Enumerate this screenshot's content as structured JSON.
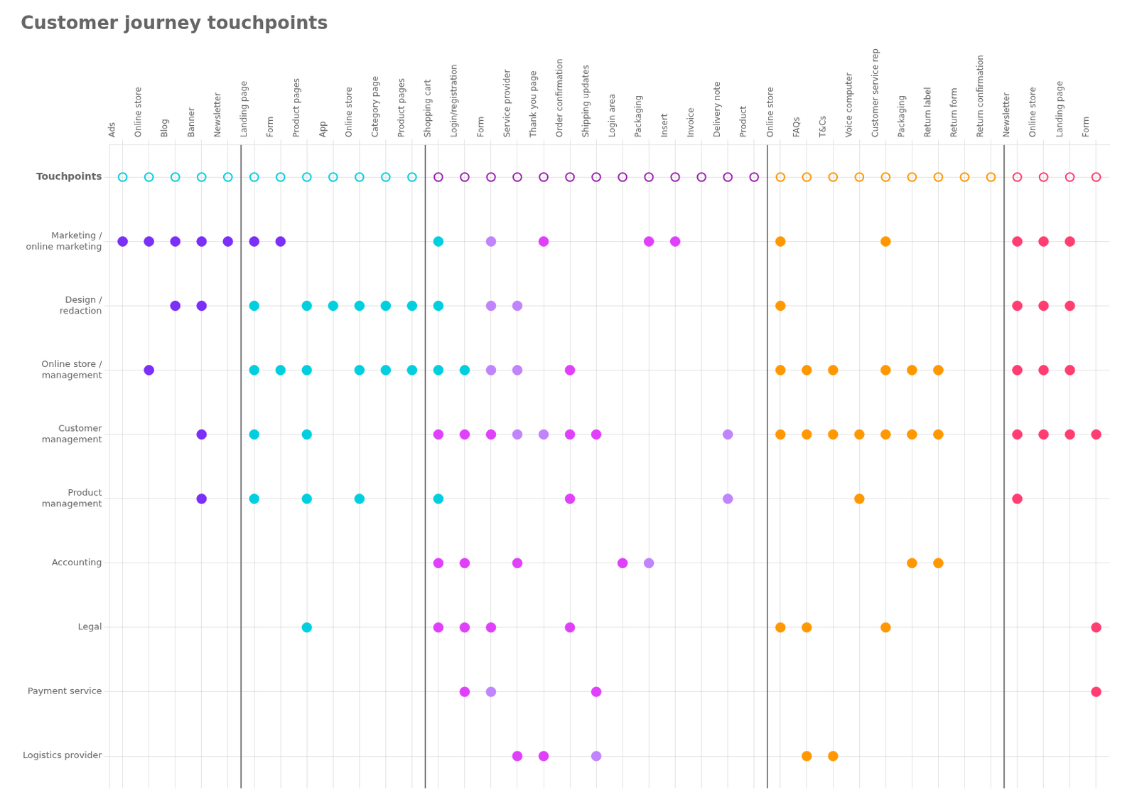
{
  "chart_data": {
    "type": "scatter",
    "title": "Customer journey touchpoints",
    "grid": true,
    "categories": [
      "Ads",
      "Online store",
      "Blog",
      "Banner",
      "Newsletter",
      "Landing page",
      "Form",
      "Product pages",
      "App",
      "Online store",
      "Category page",
      "Product pages",
      "Shopping cart",
      "Login/registration",
      "Form",
      "Service provider",
      "Thank you page",
      "Order confirmation",
      "Shipping updates",
      "Login area",
      "Packaging",
      "Insert",
      "Invoice",
      "Delivery note",
      "Product",
      "Online store",
      "FAQs",
      "T&Cs",
      "Voice computer",
      "Customer service rep",
      "Packaging",
      "Return label",
      "Return form",
      "Return confirmation",
      "Newsletter",
      "Online store",
      "Landing page",
      "Form"
    ],
    "group_separators": [
      4.5,
      11.5,
      24.5,
      33.5
    ],
    "series": [
      {
        "name": "Touchpoints",
        "marker": "open_circle",
        "colors": [
          "#00cfdf",
          "#00cfdf",
          "#00cfdf",
          "#00cfdf",
          "#00cfdf",
          "#00cfdf",
          "#00cfdf",
          "#00cfdf",
          "#00cfdf",
          "#00cfdf",
          "#00cfdf",
          "#00cfdf",
          "#9c27b0",
          "#9c27b0",
          "#9c27b0",
          "#9c27b0",
          "#9c27b0",
          "#9c27b0",
          "#9c27b0",
          "#9c27b0",
          "#9c27b0",
          "#9c27b0",
          "#9c27b0",
          "#9c27b0",
          "#9c27b0",
          "#ff9800",
          "#ff9800",
          "#ff9800",
          "#ff9800",
          "#ff9800",
          "#ff9800",
          "#ff9800",
          "#ff9800",
          "#ff9800",
          "#ff3d71",
          "#ff3d71",
          "#ff3d71",
          "#ff3d71"
        ]
      },
      {
        "name": "Marketing /\nonline marketing",
        "marker": "circle",
        "colors": [
          "#7b2ff7",
          "#7b2ff7",
          "#7b2ff7",
          "#7b2ff7",
          "#7b2ff7",
          "#7b2ff7",
          "#7b2ff7",
          null,
          null,
          null,
          null,
          null,
          "#00cfdf",
          null,
          "#c084fc",
          null,
          "#e040fb",
          null,
          null,
          null,
          "#e040fb",
          "#e040fb",
          null,
          null,
          null,
          "#ff9800",
          null,
          null,
          null,
          "#ff9800",
          null,
          null,
          null,
          null,
          "#ff3d71",
          "#ff3d71",
          "#ff3d71",
          null
        ]
      },
      {
        "name": "Design /\nredaction",
        "marker": "circle",
        "colors": [
          null,
          null,
          "#7b2ff7",
          "#7b2ff7",
          null,
          "#00cfdf",
          null,
          "#00cfdf",
          "#00cfdf",
          "#00cfdf",
          "#00cfdf",
          "#00cfdf",
          "#00cfdf",
          null,
          "#c084fc",
          "#c084fc",
          null,
          null,
          null,
          null,
          null,
          null,
          null,
          null,
          null,
          "#ff9800",
          null,
          null,
          null,
          null,
          null,
          null,
          null,
          null,
          "#ff3d71",
          "#ff3d71",
          "#ff3d71",
          null
        ]
      },
      {
        "name": "Online store /\nmanagement",
        "marker": "circle",
        "colors": [
          null,
          "#7b2ff7",
          null,
          null,
          null,
          "#00cfdf",
          "#00cfdf",
          "#00cfdf",
          null,
          "#00cfdf",
          "#00cfdf",
          "#00cfdf",
          "#00cfdf",
          "#00cfdf",
          "#c084fc",
          "#c084fc",
          null,
          "#e040fb",
          null,
          null,
          null,
          null,
          null,
          null,
          null,
          "#ff9800",
          "#ff9800",
          "#ff9800",
          null,
          "#ff9800",
          "#ff9800",
          "#ff9800",
          null,
          null,
          "#ff3d71",
          "#ff3d71",
          "#ff3d71",
          null
        ]
      },
      {
        "name": "Customer\nmanagement",
        "marker": "circle",
        "colors": [
          null,
          null,
          null,
          "#7b2ff7",
          null,
          "#00cfdf",
          null,
          "#00cfdf",
          null,
          null,
          null,
          null,
          "#e040fb",
          "#e040fb",
          "#e040fb",
          "#c084fc",
          "#c084fc",
          "#e040fb",
          "#e040fb",
          null,
          null,
          null,
          null,
          "#c084fc",
          null,
          "#ff9800",
          "#ff9800",
          "#ff9800",
          "#ff9800",
          "#ff9800",
          "#ff9800",
          "#ff9800",
          null,
          null,
          "#ff3d71",
          "#ff3d71",
          "#ff3d71",
          "#ff3d71"
        ]
      },
      {
        "name": "Product\nmanagement",
        "marker": "circle",
        "colors": [
          null,
          null,
          null,
          "#7b2ff7",
          null,
          "#00cfdf",
          null,
          "#00cfdf",
          null,
          "#00cfdf",
          null,
          null,
          "#00cfdf",
          null,
          null,
          null,
          null,
          "#e040fb",
          null,
          null,
          null,
          null,
          null,
          "#c084fc",
          null,
          null,
          null,
          null,
          "#ff9800",
          null,
          null,
          null,
          null,
          null,
          "#ff3d71",
          null,
          null,
          null
        ]
      },
      {
        "name": "Accounting",
        "marker": "circle",
        "colors": [
          null,
          null,
          null,
          null,
          null,
          null,
          null,
          null,
          null,
          null,
          null,
          null,
          "#e040fb",
          "#e040fb",
          null,
          "#e040fb",
          null,
          null,
          null,
          "#e040fb",
          "#c084fc",
          null,
          null,
          null,
          null,
          null,
          null,
          null,
          null,
          null,
          "#ff9800",
          "#ff9800",
          null,
          null,
          null,
          null,
          null,
          null
        ]
      },
      {
        "name": "Legal",
        "marker": "circle",
        "colors": [
          null,
          null,
          null,
          null,
          null,
          null,
          null,
          "#00cfdf",
          null,
          null,
          null,
          null,
          "#e040fb",
          "#e040fb",
          "#e040fb",
          null,
          null,
          "#e040fb",
          null,
          null,
          null,
          null,
          null,
          null,
          null,
          "#ff9800",
          "#ff9800",
          null,
          null,
          "#ff9800",
          null,
          null,
          null,
          null,
          null,
          null,
          null,
          "#ff3d71"
        ]
      },
      {
        "name": "Payment service",
        "marker": "circle",
        "colors": [
          null,
          null,
          null,
          null,
          null,
          null,
          null,
          null,
          null,
          null,
          null,
          null,
          null,
          "#e040fb",
          "#c084fc",
          null,
          null,
          null,
          "#e040fb",
          null,
          null,
          null,
          null,
          null,
          null,
          null,
          null,
          null,
          null,
          null,
          null,
          null,
          null,
          null,
          null,
          null,
          null,
          "#ff3d71"
        ]
      },
      {
        "name": "Logistics provider",
        "marker": "circle",
        "colors": [
          null,
          null,
          null,
          null,
          null,
          null,
          null,
          null,
          null,
          null,
          null,
          null,
          null,
          null,
          null,
          "#e040fb",
          "#e040fb",
          null,
          "#c084fc",
          null,
          null,
          null,
          null,
          null,
          null,
          null,
          "#ff9800",
          "#ff9800",
          null,
          null,
          null,
          null,
          null,
          null,
          null,
          null,
          null,
          null
        ]
      }
    ]
  }
}
